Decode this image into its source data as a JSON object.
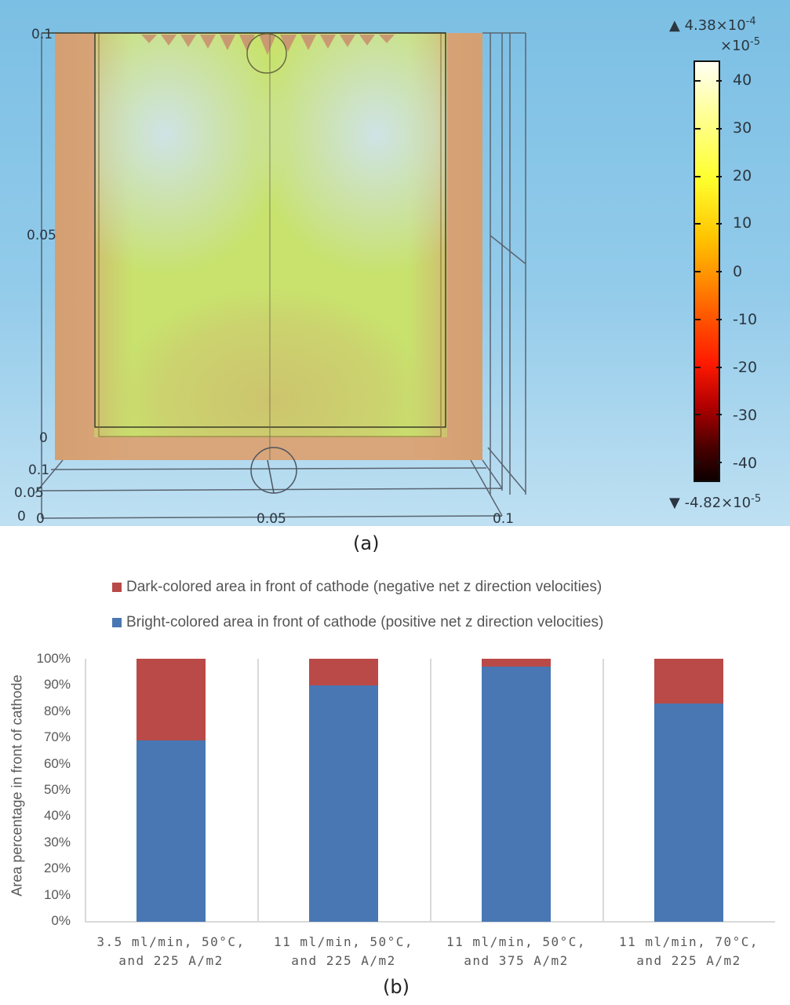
{
  "panel_a": {
    "caption": "(a)",
    "axis_labels": {
      "z_top": "0.1",
      "z_mid": "0.05",
      "z_bottom": "0",
      "y_far": "0.1",
      "y_mid": "0.05",
      "y_near": "0",
      "x_left": "0",
      "x_mid": "0.05",
      "x_right": "0.1"
    },
    "colorbar": {
      "max_label": "4.38×10",
      "max_exp": "-4",
      "scale_label": "×10",
      "scale_exp": "-5",
      "min_label": "-4.82×10",
      "min_exp": "-5",
      "ticks": [
        "40",
        "30",
        "20",
        "10",
        "0",
        "-10",
        "-20",
        "-30",
        "-40"
      ],
      "max_marker": "▲",
      "min_marker": "▼"
    }
  },
  "panel_b": {
    "caption": "(b)",
    "legend": [
      {
        "label": "Dark-colored area in front of cathode (negative net z direction velocities)",
        "color": "#b94a48"
      },
      {
        "label": "Bright-colored area in front of cathode (positive net z direction velocities)",
        "color": "#4877b3"
      }
    ],
    "ylabel": "Area percentage in front of cathode",
    "yticks": [
      "100%",
      "90%",
      "80%",
      "70%",
      "60%",
      "50%",
      "40%",
      "30%",
      "20%",
      "10%",
      "0%"
    ],
    "categories": [
      {
        "line1": "3.5 ml/min, 50°C,",
        "line2": "and 225 A/m2"
      },
      {
        "line1": "11 ml/min, 50°C,",
        "line2": "and 225 A/m2"
      },
      {
        "line1": "11 ml/min, 50°C,",
        "line2": "and 375 A/m2"
      },
      {
        "line1": "11 ml/min, 70°C,",
        "line2": "and 225 A/m2"
      }
    ]
  },
  "chart_data": [
    {
      "type": "heatmap",
      "title": "(a)",
      "description": "3D simulation contour of net z-direction velocity in front of cathode",
      "colorbar": {
        "min": -4.82e-05,
        "max": 0.000438,
        "scale": "x10^-5",
        "ticks": [
          40,
          30,
          20,
          10,
          0,
          -10,
          -20,
          -30,
          -40
        ]
      },
      "axes": {
        "x": [
          "0",
          "0.05",
          "0.1"
        ],
        "y": [
          "0",
          "0.05",
          "0.1"
        ],
        "z": [
          "0",
          "0.05",
          "0.1"
        ]
      }
    },
    {
      "type": "bar",
      "stacked": true,
      "title": "(b)",
      "categories": [
        "3.5 ml/min, 50°C, and 225 A/m2",
        "11 ml/min, 50°C, and 225 A/m2",
        "11 ml/min, 50°C, and 375 A/m2",
        "11 ml/min, 70°C, and 225 A/m2"
      ],
      "series": [
        {
          "name": "Bright-colored area in front of cathode (positive net z direction velocities)",
          "color": "#4877b3",
          "values": [
            69,
            90,
            97,
            83
          ]
        },
        {
          "name": "Dark-colored area in front of cathode (negative net z direction velocities)",
          "color": "#b94a48",
          "values": [
            31,
            10,
            3,
            17
          ]
        }
      ],
      "xlabel": "",
      "ylabel": "Area percentage in front of cathode",
      "ylim": [
        0,
        100
      ],
      "yunit": "%",
      "grid": false,
      "legend_position": "top"
    }
  ]
}
